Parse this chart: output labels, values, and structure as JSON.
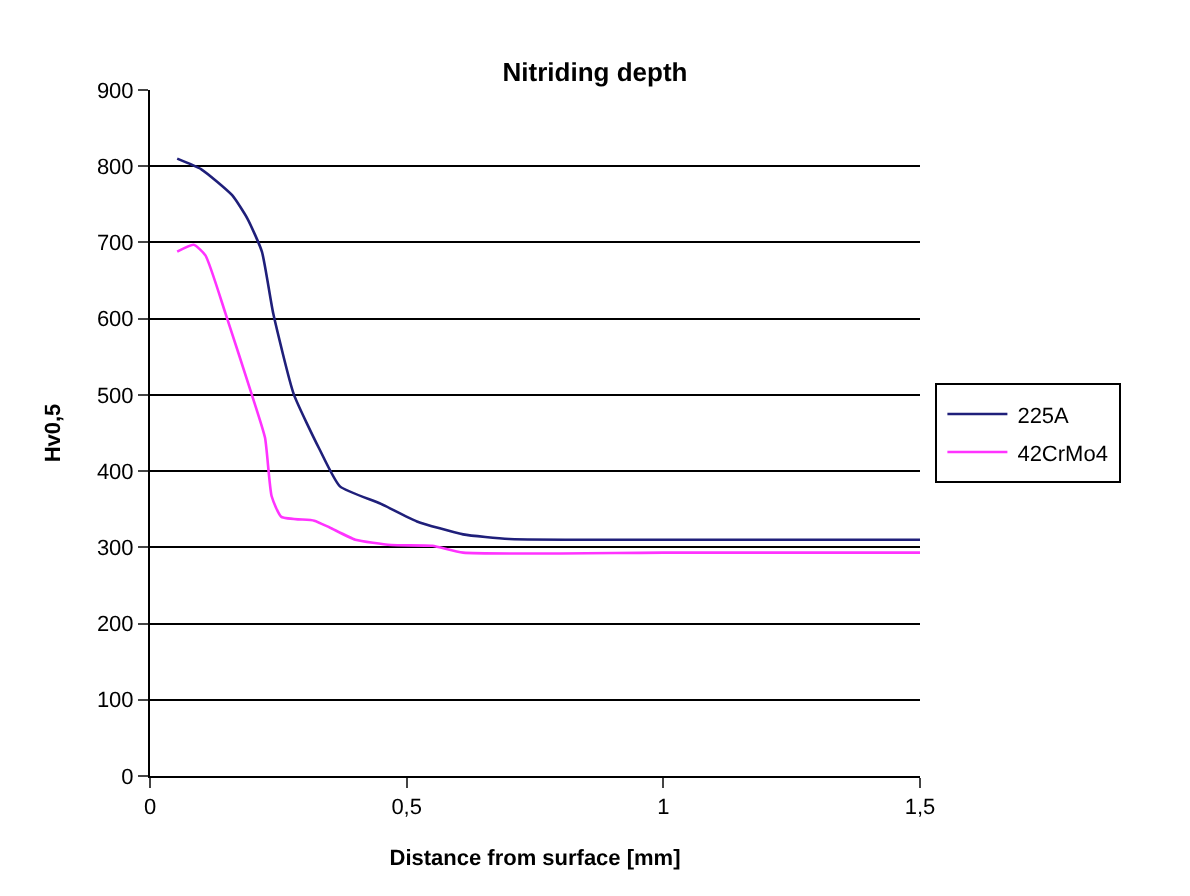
{
  "chart_data": {
    "type": "line",
    "title": "Nitriding depth",
    "xlabel": "Distance from surface [mm]",
    "ylabel": "Hv0,5",
    "xlim": [
      0,
      1.5
    ],
    "xticks": [
      0,
      {
        "value": 0.5,
        "label": "0,5"
      },
      1,
      {
        "value": 1.5,
        "label": "1,5"
      }
    ],
    "ylim": [
      0,
      900
    ],
    "yticks": [
      0,
      100,
      200,
      300,
      400,
      500,
      600,
      700,
      800,
      900
    ],
    "grid": "y",
    "legend": "right",
    "marker": "none",
    "line_style": "solid",
    "series": [
      {
        "name": "225A",
        "color": "#1f1f7a",
        "x": [
          0.053,
          0.1,
          0.16,
          0.19,
          0.218,
          0.24,
          0.28,
          0.33,
          0.37,
          0.45,
          0.52,
          0.61,
          0.7,
          1.0,
          1.5
        ],
        "values": [
          810,
          796,
          762,
          731,
          688,
          607,
          501,
          429,
          380,
          357,
          334,
          317,
          311,
          310,
          310
        ]
      },
      {
        "name": "42CrMo4",
        "color": "#ff33ff",
        "x": [
          0.053,
          0.085,
          0.108,
          0.147,
          0.198,
          0.224,
          0.237,
          0.256,
          0.32,
          0.35,
          0.4,
          0.47,
          0.55,
          0.61,
          1.0,
          1.5
        ],
        "values": [
          688,
          697,
          683,
          607,
          501,
          444,
          367,
          340,
          335,
          326,
          310,
          303,
          302,
          293,
          293,
          293
        ]
      }
    ]
  }
}
